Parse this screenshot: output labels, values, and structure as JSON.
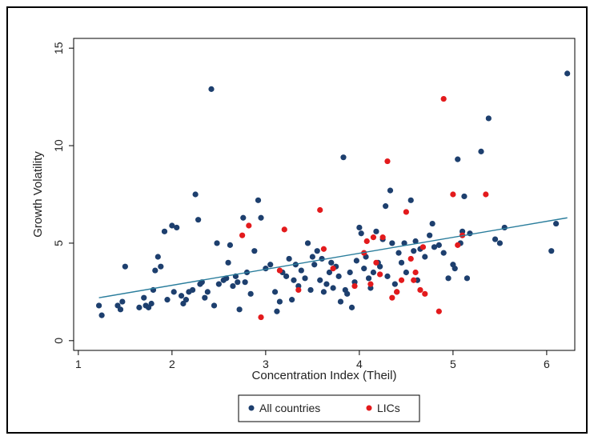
{
  "chart_data": {
    "type": "scatter",
    "title": "",
    "xlabel": "Concentration Index (Theil)",
    "ylabel": "Growth Volatility",
    "xlim": [
      0.95,
      6.3
    ],
    "ylim": [
      -0.5,
      15.5
    ],
    "xticks": [
      1,
      2,
      3,
      4,
      5,
      6
    ],
    "yticks": [
      0,
      5,
      10,
      15
    ],
    "grid": false,
    "legend_position": "bottom",
    "trend_line": {
      "x": [
        1.22,
        6.22
      ],
      "y": [
        2.2,
        6.3
      ],
      "color": "#2a7d9c"
    },
    "series": [
      {
        "name": "All countries",
        "color": "#1d3f6e",
        "points": [
          [
            1.22,
            1.8
          ],
          [
            1.25,
            1.3
          ],
          [
            1.42,
            1.8
          ],
          [
            1.45,
            1.6
          ],
          [
            1.47,
            2.0
          ],
          [
            1.5,
            3.8
          ],
          [
            1.65,
            1.7
          ],
          [
            1.7,
            2.2
          ],
          [
            1.72,
            1.8
          ],
          [
            1.75,
            1.7
          ],
          [
            1.78,
            1.9
          ],
          [
            1.8,
            2.6
          ],
          [
            1.82,
            3.6
          ],
          [
            1.85,
            4.3
          ],
          [
            1.88,
            3.8
          ],
          [
            1.92,
            5.6
          ],
          [
            1.95,
            2.1
          ],
          [
            2.0,
            5.9
          ],
          [
            2.02,
            2.5
          ],
          [
            2.05,
            5.8
          ],
          [
            2.1,
            2.3
          ],
          [
            2.12,
            1.9
          ],
          [
            2.15,
            2.1
          ],
          [
            2.18,
            2.5
          ],
          [
            2.22,
            2.6
          ],
          [
            2.25,
            7.5
          ],
          [
            2.28,
            6.2
          ],
          [
            2.3,
            2.9
          ],
          [
            2.32,
            3.0
          ],
          [
            2.35,
            2.2
          ],
          [
            2.38,
            2.5
          ],
          [
            2.42,
            12.9
          ],
          [
            2.45,
            1.8
          ],
          [
            2.48,
            5.0
          ],
          [
            2.5,
            2.9
          ],
          [
            2.55,
            3.1
          ],
          [
            2.58,
            3.2
          ],
          [
            2.6,
            4.0
          ],
          [
            2.62,
            4.9
          ],
          [
            2.65,
            2.8
          ],
          [
            2.68,
            3.3
          ],
          [
            2.7,
            3.0
          ],
          [
            2.72,
            1.6
          ],
          [
            2.76,
            6.3
          ],
          [
            2.78,
            3.0
          ],
          [
            2.8,
            3.5
          ],
          [
            2.84,
            2.4
          ],
          [
            2.88,
            4.6
          ],
          [
            2.92,
            7.2
          ],
          [
            2.95,
            6.3
          ],
          [
            3.0,
            3.7
          ],
          [
            3.05,
            3.9
          ],
          [
            3.1,
            2.5
          ],
          [
            3.12,
            1.5
          ],
          [
            3.15,
            2.0
          ],
          [
            3.18,
            3.5
          ],
          [
            3.22,
            3.3
          ],
          [
            3.25,
            4.2
          ],
          [
            3.28,
            2.1
          ],
          [
            3.3,
            3.1
          ],
          [
            3.32,
            3.9
          ],
          [
            3.35,
            2.8
          ],
          [
            3.38,
            3.6
          ],
          [
            3.42,
            3.2
          ],
          [
            3.45,
            5.0
          ],
          [
            3.48,
            2.6
          ],
          [
            3.5,
            4.3
          ],
          [
            3.52,
            3.9
          ],
          [
            3.55,
            4.6
          ],
          [
            3.58,
            3.1
          ],
          [
            3.6,
            4.2
          ],
          [
            3.62,
            2.5
          ],
          [
            3.65,
            2.9
          ],
          [
            3.68,
            3.5
          ],
          [
            3.7,
            4.0
          ],
          [
            3.72,
            2.7
          ],
          [
            3.75,
            3.8
          ],
          [
            3.78,
            3.3
          ],
          [
            3.8,
            2.0
          ],
          [
            3.83,
            9.4
          ],
          [
            3.85,
            2.6
          ],
          [
            3.87,
            2.4
          ],
          [
            3.9,
            3.5
          ],
          [
            3.92,
            1.7
          ],
          [
            3.95,
            3.0
          ],
          [
            3.97,
            4.1
          ],
          [
            4.0,
            5.8
          ],
          [
            4.02,
            5.5
          ],
          [
            4.05,
            3.7
          ],
          [
            4.07,
            4.3
          ],
          [
            4.1,
            3.2
          ],
          [
            4.12,
            2.7
          ],
          [
            4.15,
            3.5
          ],
          [
            4.18,
            5.6
          ],
          [
            4.2,
            4.0
          ],
          [
            4.22,
            3.8
          ],
          [
            4.25,
            5.2
          ],
          [
            4.28,
            6.9
          ],
          [
            4.3,
            3.3
          ],
          [
            4.33,
            7.7
          ],
          [
            4.35,
            5.0
          ],
          [
            4.38,
            2.9
          ],
          [
            4.4,
            2.5
          ],
          [
            4.42,
            4.5
          ],
          [
            4.45,
            4.0
          ],
          [
            4.48,
            5.0
          ],
          [
            4.5,
            3.5
          ],
          [
            4.55,
            7.2
          ],
          [
            4.58,
            4.6
          ],
          [
            4.6,
            5.1
          ],
          [
            4.62,
            3.1
          ],
          [
            4.65,
            4.7
          ],
          [
            4.7,
            4.3
          ],
          [
            4.75,
            5.4
          ],
          [
            4.78,
            6.0
          ],
          [
            4.8,
            4.8
          ],
          [
            4.85,
            4.9
          ],
          [
            4.9,
            4.5
          ],
          [
            4.95,
            3.2
          ],
          [
            5.0,
            3.9
          ],
          [
            5.02,
            3.7
          ],
          [
            5.05,
            9.3
          ],
          [
            5.08,
            5.0
          ],
          [
            5.1,
            5.6
          ],
          [
            5.12,
            7.4
          ],
          [
            5.15,
            3.2
          ],
          [
            5.18,
            5.5
          ],
          [
            5.3,
            9.7
          ],
          [
            5.38,
            11.4
          ],
          [
            5.45,
            5.2
          ],
          [
            5.5,
            5.0
          ],
          [
            5.55,
            5.8
          ],
          [
            6.05,
            4.6
          ],
          [
            6.1,
            6.0
          ],
          [
            6.22,
            13.7
          ]
        ]
      },
      {
        "name": "LICs",
        "color": "#e31a1c",
        "points": [
          [
            2.75,
            5.4
          ],
          [
            2.82,
            5.9
          ],
          [
            2.95,
            1.2
          ],
          [
            3.15,
            3.6
          ],
          [
            3.2,
            5.7
          ],
          [
            3.35,
            2.6
          ],
          [
            3.58,
            6.7
          ],
          [
            3.62,
            4.7
          ],
          [
            3.72,
            3.7
          ],
          [
            3.95,
            2.8
          ],
          [
            4.05,
            4.5
          ],
          [
            4.08,
            5.1
          ],
          [
            4.12,
            2.9
          ],
          [
            4.15,
            5.3
          ],
          [
            4.18,
            4.0
          ],
          [
            4.22,
            3.4
          ],
          [
            4.25,
            5.3
          ],
          [
            4.3,
            9.2
          ],
          [
            4.35,
            2.2
          ],
          [
            4.4,
            2.5
          ],
          [
            4.45,
            3.1
          ],
          [
            4.5,
            6.6
          ],
          [
            4.55,
            4.2
          ],
          [
            4.58,
            3.1
          ],
          [
            4.6,
            3.5
          ],
          [
            4.65,
            2.6
          ],
          [
            4.68,
            4.8
          ],
          [
            4.7,
            2.4
          ],
          [
            4.85,
            1.5
          ],
          [
            4.9,
            12.4
          ],
          [
            5.0,
            7.5
          ],
          [
            5.05,
            4.9
          ],
          [
            5.1,
            5.4
          ],
          [
            5.35,
            7.5
          ]
        ]
      }
    ]
  }
}
